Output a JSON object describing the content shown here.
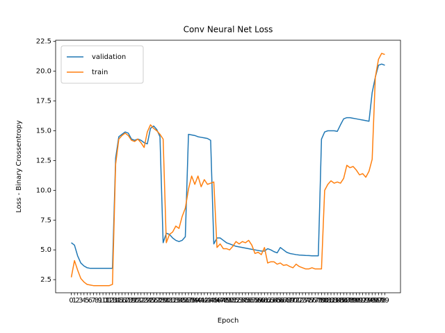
{
  "chart_data": {
    "type": "line",
    "title": "Conv Neural Net Loss",
    "xlabel": "Epoch",
    "ylabel": "Loss - Binary Crossentropy",
    "x": [
      0,
      1,
      2,
      3,
      4,
      5,
      6,
      7,
      8,
      9,
      10,
      11,
      12,
      13,
      14,
      15,
      16,
      17,
      18,
      19,
      20,
      21,
      22,
      23,
      24,
      25,
      26,
      27,
      28,
      29,
      30,
      31,
      32,
      33,
      34,
      35,
      36,
      37,
      38,
      39,
      40,
      41,
      42,
      43,
      44,
      45,
      46,
      47,
      48,
      49,
      50,
      51,
      52,
      53,
      54,
      55,
      56,
      57,
      58,
      59,
      60,
      61,
      62,
      63,
      64,
      65,
      66,
      67,
      68,
      69,
      70,
      71,
      72,
      73,
      74,
      75,
      76,
      77,
      78,
      79,
      80,
      81,
      82,
      83,
      84,
      85,
      86,
      87,
      88,
      89,
      90,
      91,
      92,
      93,
      94,
      95,
      96,
      97,
      98,
      99
    ],
    "xlim": [
      -4.95,
      103.95
    ],
    "ylim": [
      1.4,
      22.6
    ],
    "yticks": [
      2.5,
      {
        "value": 5,
        "label": "5.0"
      },
      7.5,
      {
        "value": 10,
        "label": "10.0"
      },
      12.5,
      {
        "value": 15,
        "label": "15.0"
      },
      17.5,
      {
        "value": 20,
        "label": "20.0"
      },
      22.5
    ],
    "legend": "upper left",
    "series": [
      {
        "name": "validation",
        "color": "#1f77b4",
        "values": [
          5.6,
          5.4,
          4.5,
          3.9,
          3.65,
          3.5,
          3.45,
          3.45,
          3.45,
          3.45,
          3.45,
          3.45,
          3.45,
          3.45,
          12.7,
          14.5,
          14.7,
          14.9,
          14.8,
          14.3,
          14.2,
          14.3,
          14.2,
          14.0,
          13.9,
          15.2,
          15.4,
          15.1,
          14.5,
          5.6,
          6.4,
          6.3,
          6.0,
          5.8,
          5.7,
          5.8,
          6.1,
          14.7,
          14.65,
          14.6,
          14.5,
          14.45,
          14.4,
          14.35,
          14.2,
          5.5,
          6.0,
          6.0,
          5.8,
          5.6,
          5.5,
          5.4,
          5.3,
          5.25,
          5.2,
          5.15,
          5.1,
          5.05,
          5.0,
          4.95,
          4.9,
          4.9,
          5.1,
          5.0,
          4.85,
          4.75,
          5.2,
          5.0,
          4.8,
          4.7,
          4.65,
          4.6,
          4.57,
          4.55,
          4.53,
          4.52,
          4.5,
          4.5,
          4.5,
          14.3,
          14.9,
          15.0,
          15.0,
          15.0,
          14.95,
          15.5,
          16.0,
          16.1,
          16.1,
          16.05,
          16.0,
          15.95,
          15.9,
          15.85,
          15.8,
          18.2,
          19.5,
          20.5,
          20.6,
          20.5
        ]
      },
      {
        "name": "train",
        "color": "#ff7f0e",
        "values": [
          2.7,
          4.1,
          3.3,
          2.6,
          2.3,
          2.1,
          2.05,
          2.0,
          2.0,
          2.0,
          2.0,
          2.0,
          2.0,
          2.1,
          12.2,
          14.3,
          14.6,
          14.8,
          14.6,
          14.2,
          14.1,
          14.3,
          14.0,
          13.6,
          14.9,
          15.5,
          15.2,
          15.0,
          14.7,
          14.3,
          5.6,
          6.3,
          6.5,
          7.0,
          6.8,
          7.8,
          8.5,
          10.1,
          11.2,
          10.5,
          11.2,
          10.3,
          10.9,
          10.5,
          10.6,
          10.7,
          5.2,
          5.5,
          5.1,
          5.1,
          5.0,
          5.3,
          5.7,
          5.5,
          5.7,
          5.6,
          5.8,
          5.4,
          4.7,
          4.8,
          4.6,
          5.2,
          3.9,
          4.0,
          4.0,
          3.8,
          3.9,
          3.7,
          3.75,
          3.6,
          3.5,
          3.8,
          3.6,
          3.5,
          3.4,
          3.4,
          3.5,
          3.4,
          3.4,
          3.4,
          10.0,
          10.5,
          10.8,
          10.6,
          10.7,
          10.6,
          11.0,
          12.1,
          11.9,
          12.0,
          11.7,
          11.3,
          11.4,
          11.1,
          11.6,
          12.6,
          19.5,
          21.0,
          21.5,
          21.4
        ]
      }
    ]
  }
}
